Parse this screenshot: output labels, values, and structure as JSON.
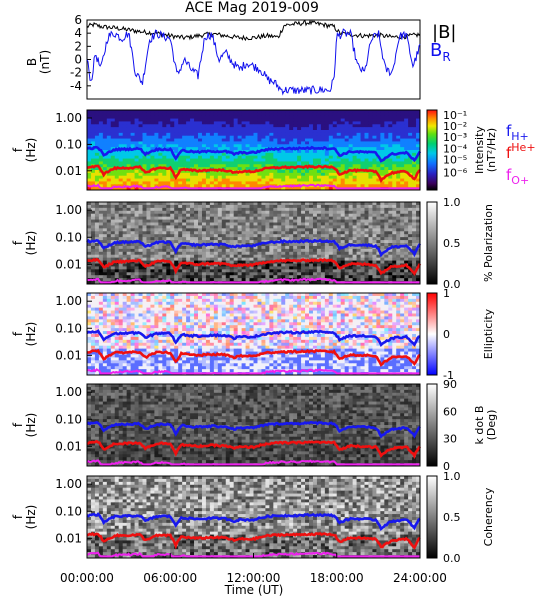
{
  "title": "ACE Mag 2019-009",
  "colors": {
    "b_mag": "#000000",
    "b_r": "#1010ee",
    "f_h": "#1818ee",
    "f_he": "#ee1010",
    "f_o": "#ee22ee"
  },
  "chart_data": [
    {
      "type": "line",
      "panel": "magnetic-field",
      "ylabel": "B\n(nT)",
      "yticks": [
        "6",
        "4",
        "2",
        "0",
        "-2",
        "-4"
      ],
      "ylim": [
        -6,
        6
      ],
      "xlim": [
        0,
        24
      ],
      "series": [
        {
          "name": "|B|",
          "color": "#000000",
          "x": [
            0,
            0.5,
            1,
            2,
            3,
            4,
            5,
            6,
            7,
            8,
            9,
            10,
            11,
            12,
            13,
            13.8,
            14.2,
            15,
            16,
            17,
            17.8,
            18.2,
            19,
            20,
            21,
            22,
            23,
            24
          ],
          "values": [
            5.0,
            5.3,
            5.0,
            4.8,
            4.5,
            4.2,
            4.0,
            3.6,
            3.3,
            3.6,
            3.9,
            3.6,
            3.3,
            3.3,
            3.6,
            3.4,
            5.2,
            5.4,
            5.6,
            5.3,
            5.0,
            4.0,
            3.8,
            3.6,
            3.7,
            3.4,
            3.5,
            3.8
          ]
        },
        {
          "name": "B_R",
          "color": "#1010ee",
          "x": [
            0,
            0.3,
            0.6,
            1,
            1.5,
            2,
            2.5,
            3,
            3.5,
            4,
            4.5,
            5,
            5.5,
            6,
            6.5,
            7,
            7.5,
            8,
            8.5,
            9,
            9.5,
            10,
            10.5,
            11,
            11.5,
            12,
            12.5,
            13,
            13.5,
            14,
            15,
            16,
            17,
            17.5,
            17.8,
            18,
            18.5,
            19,
            19.5,
            20,
            20.5,
            21,
            21.5,
            22,
            22.5,
            23,
            23.5,
            24
          ],
          "values": [
            0,
            -3.5,
            1,
            -1.5,
            3.5,
            4,
            3.2,
            4,
            -2,
            -3.5,
            3,
            4,
            3.5,
            3.2,
            -2.5,
            0,
            -1.5,
            -2.5,
            3.5,
            3.8,
            0,
            1,
            -0.5,
            -1.5,
            -0.5,
            -1,
            -1.5,
            -3,
            -3.5,
            -4.6,
            -4.7,
            -4.7,
            -4.6,
            -4.7,
            -3,
            3.5,
            4,
            3.8,
            -1,
            -2,
            3,
            4,
            -1.5,
            -2,
            3.5,
            3.8,
            -1,
            2
          ]
        }
      ]
    },
    {
      "type": "heatmap",
      "panel": "intensity",
      "ylabel": "f\n(Hz)",
      "yticks": [
        "1.00",
        "0.10",
        "0.01"
      ],
      "colorbar_label": "Intensity\n(nT²/Hz)",
      "colorbar_ticks": [
        "10⁻¹",
        "10⁻²",
        "10⁻³",
        "10⁻⁴",
        "10⁻⁵",
        "10⁻⁶"
      ],
      "legend": [
        {
          "label": "f_H+",
          "base": "f",
          "sub": "H+",
          "color": "#1818ee"
        },
        {
          "label": "f_He+",
          "base": "f",
          "sup": "He+",
          "color": "#ee1010"
        },
        {
          "label": "f_O+",
          "base": "f",
          "sub": "O+",
          "color": "#ee22ee"
        }
      ]
    },
    {
      "type": "heatmap",
      "panel": "polarization",
      "ylabel": "f\n(Hz)",
      "yticks": [
        "1.00",
        "0.10",
        "0.01"
      ],
      "colorbar_label": "% Polarization",
      "colorbar_ticks": [
        "1.0",
        "0.5",
        "0.0"
      ]
    },
    {
      "type": "heatmap",
      "panel": "ellipticity",
      "ylabel": "f\n(Hz)",
      "yticks": [
        "1.00",
        "0.10",
        "0.01"
      ],
      "colorbar_label": "Ellipticity",
      "colorbar_ticks": [
        "1",
        "0",
        "-1"
      ]
    },
    {
      "type": "heatmap",
      "panel": "k-dot-b",
      "ylabel": "f\n(Hz)",
      "yticks": [
        "1.00",
        "0.10",
        "0.01"
      ],
      "colorbar_label": "k dot B\n(Deg)",
      "colorbar_ticks": [
        "90",
        "60",
        "30",
        "0"
      ]
    },
    {
      "type": "heatmap",
      "panel": "coherency",
      "ylabel": "f\n(Hz)",
      "yticks": [
        "1.00",
        "0.10",
        "0.01"
      ],
      "colorbar_label": "Coherency",
      "colorbar_ticks": [
        "1.0",
        "0.5",
        "0.0"
      ]
    }
  ],
  "gyrofrequency_lines": {
    "x": [
      0,
      0.8,
      1.2,
      2,
      3,
      3.8,
      4.2,
      5,
      5.5,
      6,
      6.4,
      6.8,
      7.5,
      8,
      9,
      10,
      10.6,
      11,
      12,
      13,
      14,
      15,
      16,
      17,
      17.8,
      18.2,
      19,
      20,
      20.8,
      21.2,
      22,
      23,
      23.6,
      24
    ],
    "f_H": [
      0.075,
      0.08,
      0.045,
      0.07,
      0.072,
      0.075,
      0.05,
      0.07,
      0.072,
      0.07,
      0.035,
      0.065,
      0.06,
      0.058,
      0.062,
      0.06,
      0.05,
      0.055,
      0.055,
      0.07,
      0.075,
      0.075,
      0.078,
      0.078,
      0.075,
      0.045,
      0.06,
      0.058,
      0.055,
      0.03,
      0.05,
      0.055,
      0.03,
      0.06
    ]
  },
  "x_axis": {
    "label": "Time (UT)",
    "ticks": [
      "00:00:00",
      "06:00:00",
      "12:00:00",
      "18:00:00",
      "24:00:00"
    ],
    "range_hours": [
      0,
      24
    ]
  }
}
